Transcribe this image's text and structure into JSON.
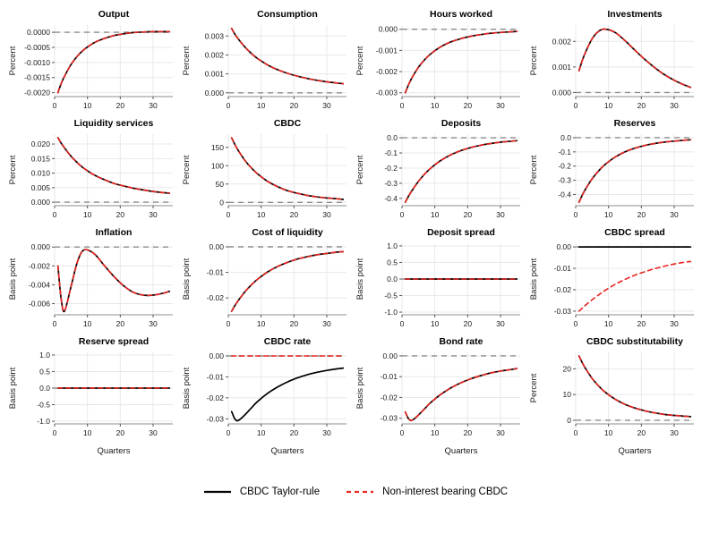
{
  "figure": {
    "legend": [
      {
        "label": "CBDC Taylor-rule",
        "color": "#000000",
        "dash": "none"
      },
      {
        "label": "Non-interest bearing CBDC",
        "color": "#e8241f",
        "dash": "5,4"
      }
    ]
  },
  "chart_data": {
    "type": "line",
    "x": [
      1,
      2,
      3,
      5,
      7,
      9,
      12,
      15,
      18,
      21,
      24,
      27,
      30,
      33,
      35
    ],
    "xlim": [
      0,
      36
    ],
    "xticks": [
      0,
      10,
      20,
      30
    ],
    "xtick_labels": [
      "0",
      "10",
      "20",
      "30"
    ],
    "series_styles": [
      {
        "name": "CBDC Taylor-rule",
        "color": "#000000",
        "dash": "none",
        "width": 1.7
      },
      {
        "name": "Non-interest bearing CBDC",
        "color": "#e8241f",
        "dash": "5,4",
        "width": 1.6
      }
    ],
    "zero_line_color": "#8c8c8c",
    "grid_color": "#e8e8e8",
    "axis_color": "#8c8c8c",
    "panels": [
      {
        "title": "Output",
        "ylabel": "Percent",
        "xlabel": null,
        "ylim": [
          -0.00213,
          0.00024
        ],
        "yticks": [
          0,
          -0.0005,
          -0.001,
          -0.0015,
          -0.002
        ],
        "ytick_labels": [
          "0.0000",
          "-0.0005",
          "-0.0010",
          "-0.0015",
          "-0.0020"
        ],
        "zero_line": true,
        "series": [
          {
            "name": "CBDC Taylor-rule",
            "values": [
              -0.002,
              -0.0017,
              -0.00146,
              -0.00107,
              -0.00078,
              -0.00057,
              -0.00035,
              -0.00021,
              -0.00011,
              -5e-05,
              -1e-05,
              1e-05,
              2e-05,
              2e-05,
              2e-05
            ]
          },
          {
            "name": "Non-interest bearing CBDC",
            "values": "same"
          }
        ]
      },
      {
        "title": "Consumption",
        "ylabel": "Percent",
        "xlabel": null,
        "ylim": [
          -0.0002,
          0.00358
        ],
        "yticks": [
          0,
          0.001,
          0.002,
          0.003
        ],
        "ytick_labels": [
          "0.000",
          "0.001",
          "0.002",
          "0.003"
        ],
        "zero_line": true,
        "series": [
          {
            "name": "CBDC Taylor-rule",
            "values": [
              0.0034,
              0.0031,
              0.00285,
              0.00243,
              0.00208,
              0.0018,
              0.00147,
              0.00122,
              0.00103,
              0.00088,
              0.00076,
              0.00066,
              0.00058,
              0.00052,
              0.00048
            ]
          },
          {
            "name": "Non-interest bearing CBDC",
            "values": "same"
          }
        ]
      },
      {
        "title": "Hours worked",
        "ylabel": "Percent",
        "xlabel": null,
        "ylim": [
          -0.00318,
          0.0002
        ],
        "yticks": [
          0,
          -0.001,
          -0.002,
          -0.003
        ],
        "ytick_labels": [
          "0.000",
          "-0.001",
          "-0.002",
          "-0.003"
        ],
        "zero_line": true,
        "series": [
          {
            "name": "CBDC Taylor-rule",
            "values": [
              -0.003,
              -0.00262,
              -0.0023,
              -0.0018,
              -0.00142,
              -0.00113,
              -0.00081,
              -0.00059,
              -0.00044,
              -0.00033,
              -0.00025,
              -0.00019,
              -0.00015,
              -0.00012,
              -0.0001
            ]
          },
          {
            "name": "Non-interest bearing CBDC",
            "values": "same"
          }
        ]
      },
      {
        "title": "Investments",
        "ylabel": "Percent",
        "xlabel": null,
        "ylim": [
          -0.00016,
          0.00264
        ],
        "yticks": [
          0,
          0.001,
          0.002
        ],
        "ytick_labels": [
          "0.000",
          "0.001",
          "0.002"
        ],
        "zero_line": true,
        "series": [
          {
            "name": "CBDC Taylor-rule",
            "values": [
              0.00085,
              0.00125,
              0.00158,
              0.0021,
              0.0024,
              0.00248,
              0.00235,
              0.00203,
              0.00166,
              0.0013,
              0.00098,
              0.0007,
              0.00048,
              0.0003,
              0.0002
            ]
          },
          {
            "name": "Non-interest bearing CBDC",
            "values": "same"
          }
        ]
      },
      {
        "title": "Liquidity services",
        "ylabel": "Percent",
        "xlabel": null,
        "ylim": [
          -0.0012,
          0.0234
        ],
        "yticks": [
          0,
          0.005,
          0.01,
          0.015,
          0.02
        ],
        "ytick_labels": [
          "0.000",
          "0.005",
          "0.010",
          "0.015",
          "0.020"
        ],
        "zero_line": true,
        "series": [
          {
            "name": "CBDC Taylor-rule",
            "values": [
              0.0222,
              0.0203,
              0.0187,
              0.0158,
              0.0135,
              0.0116,
              0.0094,
              0.0078,
              0.0065,
              0.0056,
              0.0048,
              0.0042,
              0.0037,
              0.0033,
              0.0031
            ]
          },
          {
            "name": "Non-interest bearing CBDC",
            "values": "same"
          }
        ]
      },
      {
        "title": "CBDC",
        "ylabel": "Percent",
        "xlabel": null,
        "ylim": [
          -9,
          186
        ],
        "yticks": [
          0,
          50,
          100,
          150
        ],
        "ytick_labels": [
          "0",
          "50",
          "100",
          "150"
        ],
        "zero_line": true,
        "series": [
          {
            "name": "CBDC Taylor-rule",
            "values": [
              176,
              158,
              142,
              115,
              94,
              77,
              57,
              43,
              32,
              25,
              19,
              15,
              12,
              10,
              8
            ]
          },
          {
            "name": "Non-interest bearing CBDC",
            "values": "same"
          }
        ]
      },
      {
        "title": "Deposits",
        "ylabel": "Percent",
        "xlabel": null,
        "ylim": [
          -0.448,
          0.024
        ],
        "yticks": [
          0,
          -0.1,
          -0.2,
          -0.3,
          -0.4
        ],
        "ytick_labels": [
          "0.0",
          "-0.1",
          "-0.2",
          "-0.3",
          "-0.4"
        ],
        "zero_line": true,
        "series": [
          {
            "name": "CBDC Taylor-rule",
            "values": [
              -0.425,
              -0.385,
              -0.35,
              -0.288,
              -0.237,
              -0.196,
              -0.147,
              -0.111,
              -0.084,
              -0.064,
              -0.049,
              -0.038,
              -0.029,
              -0.023,
              -0.019
            ]
          },
          {
            "name": "Non-interest bearing CBDC",
            "values": "same"
          }
        ]
      },
      {
        "title": "Reserves",
        "ylabel": "Percent",
        "xlabel": null,
        "ylim": [
          -0.479,
          0.025
        ],
        "yticks": [
          0,
          -0.1,
          -0.2,
          -0.3,
          -0.4
        ],
        "ytick_labels": [
          "0.0",
          "-0.1",
          "-0.2",
          "-0.3",
          "-0.4"
        ],
        "zero_line": true,
        "series": [
          {
            "name": "CBDC Taylor-rule",
            "values": [
              -0.455,
              -0.405,
              -0.362,
              -0.29,
              -0.233,
              -0.188,
              -0.137,
              -0.1,
              -0.074,
              -0.055,
              -0.041,
              -0.031,
              -0.024,
              -0.018,
              -0.015
            ]
          },
          {
            "name": "Non-interest bearing CBDC",
            "values": "same"
          }
        ]
      },
      {
        "title": "Inflation",
        "ylabel": "Basis point",
        "xlabel": null,
        "ylim": [
          -0.00718,
          0.0004
        ],
        "yticks": [
          0,
          -0.002,
          -0.004,
          -0.006
        ],
        "ytick_labels": [
          "0.000",
          "-0.002",
          "-0.004",
          "-0.006"
        ],
        "zero_line": true,
        "series": [
          {
            "name": "CBDC Taylor-rule",
            "values": [
              -0.002,
              -0.0055,
              -0.0068,
              -0.0042,
              -0.0015,
              -0.0003,
              -0.0007,
              -0.0019,
              -0.0031,
              -0.0041,
              -0.0048,
              -0.0051,
              -0.0051,
              -0.0049,
              -0.0047
            ]
          },
          {
            "name": "Non-interest bearing CBDC",
            "values": "same"
          }
        ]
      },
      {
        "title": "Cost of liquidity",
        "ylabel": "Basis point",
        "xlabel": null,
        "ylim": [
          -0.0266,
          0.0014
        ],
        "yticks": [
          0,
          -0.01,
          -0.02
        ],
        "ytick_labels": [
          "0.00",
          "-0.01",
          "-0.02"
        ],
        "zero_line": true,
        "series": [
          {
            "name": "CBDC Taylor-rule",
            "values": [
              -0.0252,
              -0.023,
              -0.0211,
              -0.0177,
              -0.0149,
              -0.0126,
              -0.0098,
              -0.0077,
              -0.0061,
              -0.0048,
              -0.0039,
              -0.0031,
              -0.0026,
              -0.0021,
              -0.0019
            ]
          },
          {
            "name": "Non-interest bearing CBDC",
            "values": "same"
          }
        ]
      },
      {
        "title": "Deposit spread",
        "ylabel": "Basis point",
        "xlabel": null,
        "ylim": [
          -1.08,
          1.08
        ],
        "yticks": [
          1,
          0.5,
          0,
          -0.5,
          -1
        ],
        "ytick_labels": [
          "1.0",
          "0.5",
          "0.0",
          "-0.5",
          "-1.0"
        ],
        "zero_line": true,
        "series": [
          {
            "name": "CBDC Taylor-rule",
            "values": [
              0,
              0,
              0,
              0,
              0,
              0,
              0,
              0,
              0,
              0,
              0,
              0,
              0,
              0,
              0
            ]
          },
          {
            "name": "Non-interest bearing CBDC",
            "values": "same"
          }
        ]
      },
      {
        "title": "CBDC spread",
        "ylabel": "Basis point",
        "xlabel": null,
        "ylim": [
          -0.0317,
          0.0017
        ],
        "yticks": [
          0,
          -0.01,
          -0.02,
          -0.03
        ],
        "ytick_labels": [
          "0.00",
          "-0.01",
          "-0.02",
          "-0.03"
        ],
        "zero_line": true,
        "series": [
          {
            "name": "CBDC Taylor-rule",
            "values": [
              0,
              0,
              0,
              0,
              0,
              0,
              0,
              0,
              0,
              0,
              0,
              0,
              0,
              0,
              0
            ]
          },
          {
            "name": "Non-interest bearing CBDC",
            "values": [
              -0.03,
              -0.0286,
              -0.0272,
              -0.0247,
              -0.0224,
              -0.0203,
              -0.0175,
              -0.0152,
              -0.0132,
              -0.0116,
              -0.0102,
              -0.009,
              -0.008,
              -0.0072,
              -0.0068
            ]
          }
        ]
      },
      {
        "title": "Reserve spread",
        "ylabel": "Basis point",
        "xlabel": "Quarters",
        "ylim": [
          -1.08,
          1.08
        ],
        "yticks": [
          1,
          0.5,
          0,
          -0.5,
          -1
        ],
        "ytick_labels": [
          "1.0",
          "0.5",
          "0.0",
          "-0.5",
          "-1.0"
        ],
        "zero_line": true,
        "series": [
          {
            "name": "CBDC Taylor-rule",
            "values": [
              0,
              0,
              0,
              0,
              0,
              0,
              0,
              0,
              0,
              0,
              0,
              0,
              0,
              0,
              0
            ]
          },
          {
            "name": "Non-interest bearing CBDC",
            "values": "same"
          }
        ]
      },
      {
        "title": "CBDC rate",
        "ylabel": "Basis point",
        "xlabel": "Quarters",
        "ylim": [
          -0.0324,
          0.0017
        ],
        "yticks": [
          0,
          -0.01,
          -0.02,
          -0.03
        ],
        "ytick_labels": [
          "0.00",
          "-0.01",
          "-0.02",
          "-0.03"
        ],
        "zero_line": true,
        "series": [
          {
            "name": "CBDC Taylor-rule",
            "values": [
              -0.0265,
              -0.03,
              -0.0308,
              -0.0282,
              -0.0248,
              -0.0216,
              -0.0178,
              -0.0148,
              -0.0124,
              -0.0105,
              -0.009,
              -0.0078,
              -0.0069,
              -0.0062,
              -0.0058
            ]
          },
          {
            "name": "Non-interest bearing CBDC",
            "values": [
              0,
              0,
              0,
              0,
              0,
              0,
              0,
              0,
              0,
              0,
              0,
              0,
              0,
              0,
              0
            ]
          }
        ]
      },
      {
        "title": "Bond rate",
        "ylabel": "Basis point",
        "xlabel": "Quarters",
        "ylim": [
          -0.0327,
          0.0017
        ],
        "yticks": [
          0,
          -0.01,
          -0.02,
          -0.03
        ],
        "ytick_labels": [
          "0.00",
          "-0.01",
          "-0.02",
          "-0.03"
        ],
        "zero_line": true,
        "series": [
          {
            "name": "CBDC Taylor-rule",
            "values": [
              -0.027,
              -0.0302,
              -0.031,
              -0.0285,
              -0.0252,
              -0.0221,
              -0.0183,
              -0.0153,
              -0.0129,
              -0.011,
              -0.0095,
              -0.0082,
              -0.0073,
              -0.0066,
              -0.0061
            ]
          },
          {
            "name": "Non-interest bearing CBDC",
            "values": "same"
          }
        ]
      },
      {
        "title": "CBDC substitutability",
        "ylabel": "Percent",
        "xlabel": "Quarters",
        "ylim": [
          -1.4,
          26.4
        ],
        "yticks": [
          0,
          10,
          20
        ],
        "ytick_labels": [
          "0",
          "10",
          "20"
        ],
        "zero_line": true,
        "series": [
          {
            "name": "CBDC Taylor-rule",
            "values": [
              25,
              22.4,
              20.1,
              16.3,
              13.3,
              10.9,
              8.2,
              6.2,
              4.8,
              3.7,
              2.9,
              2.3,
              1.9,
              1.6,
              1.4
            ]
          },
          {
            "name": "Non-interest bearing CBDC",
            "values": "same"
          }
        ]
      }
    ]
  }
}
